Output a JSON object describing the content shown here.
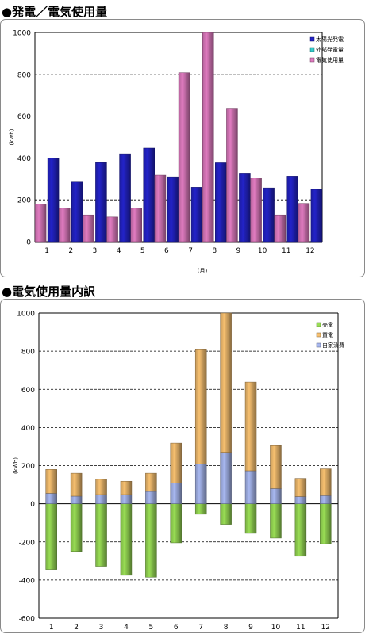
{
  "sections": {
    "chart1_title": "●発電／電気使用量",
    "chart2_title": "●電気使用量内訳"
  },
  "chart_data": [
    {
      "type": "bar",
      "title": "●発電／電気使用量",
      "xlabel": "(月)",
      "ylabel": "(kWh)",
      "ylim": [
        0,
        1000
      ],
      "yticks": [
        0,
        200,
        400,
        600,
        800,
        1000
      ],
      "grid": true,
      "legend_position": "top-right",
      "categories": [
        "1",
        "2",
        "3",
        "4",
        "5",
        "6",
        "7",
        "8",
        "9",
        "10",
        "11",
        "12"
      ],
      "series": [
        {
          "name": "太陽光発電",
          "color": "#2323c8",
          "values": [
            400,
            285,
            378,
            420,
            447,
            310,
            260,
            377,
            328,
            257,
            313,
            250
          ]
        },
        {
          "name": "外部発電量",
          "color": "#33cccc",
          "values": [
            0,
            0,
            0,
            0,
            0,
            0,
            0,
            0,
            0,
            0,
            0,
            0
          ]
        },
        {
          "name": "電気使用量",
          "color": "#e07bc0",
          "values": [
            180,
            160,
            128,
            118,
            160,
            318,
            808,
            1000,
            638,
            305,
            128,
            183
          ]
        }
      ]
    },
    {
      "type": "bar",
      "stacked": true,
      "title": "●電気使用量内訳",
      "xlabel": "",
      "ylabel": "(kWh)",
      "ylim": [
        -600,
        1000
      ],
      "yticks": [
        -600,
        -400,
        -200,
        0,
        200,
        400,
        600,
        800,
        1000
      ],
      "grid": true,
      "legend_position": "top-right",
      "categories": [
        "1",
        "2",
        "3",
        "4",
        "5",
        "6",
        "7",
        "8",
        "9",
        "10",
        "11",
        "12"
      ],
      "series": [
        {
          "name": "売電",
          "color": "#99dd55",
          "values": [
            -345,
            -250,
            -328,
            -375,
            -385,
            -205,
            -55,
            -108,
            -155,
            -180,
            -275,
            -210
          ]
        },
        {
          "name": "買電",
          "color": "#f7c070",
          "values": [
            125,
            120,
            80,
            70,
            95,
            210,
            600,
            730,
            465,
            225,
            95,
            140
          ]
        },
        {
          "name": "自家消費",
          "color": "#a8b8f0",
          "values": [
            55,
            40,
            48,
            48,
            65,
            108,
            208,
            270,
            173,
            80,
            38,
            43
          ]
        }
      ]
    }
  ]
}
